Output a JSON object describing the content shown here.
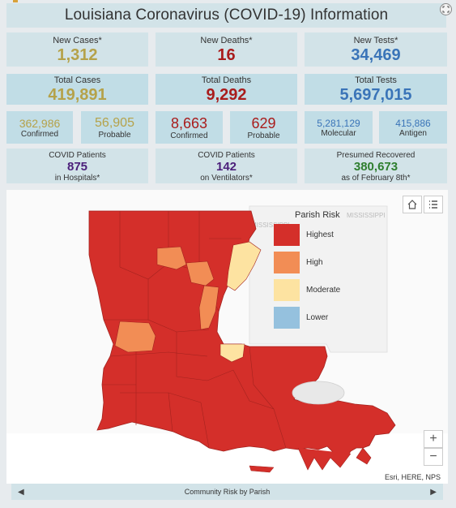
{
  "header": {
    "title": "Louisiana Coronavirus (COVID-19) Information"
  },
  "row1": [
    {
      "label": "New Cases*",
      "value": "1,312",
      "color": "#b5a24a"
    },
    {
      "label": "New Deaths*",
      "value": "16",
      "color": "#a91c1c"
    },
    {
      "label": "New Tests*",
      "value": "34,469",
      "color": "#3a74b8"
    }
  ],
  "row2": [
    {
      "label": "Total Cases",
      "value": "419,891",
      "color": "#b5a24a"
    },
    {
      "label": "Total Deaths",
      "value": "9,292",
      "color": "#a91c1c"
    },
    {
      "label": "Total Tests",
      "value": "5,697,015",
      "color": "#3a74b8"
    }
  ],
  "row3": {
    "confirmed_cases": {
      "value": "362,986",
      "label": "Confirmed"
    },
    "probable_cases": {
      "value": "56,905",
      "label": "Probable"
    },
    "confirmed_deaths": {
      "value": "8,663",
      "label": "Confirmed"
    },
    "probable_deaths": {
      "value": "629",
      "label": "Probable"
    },
    "molecular_tests": {
      "value": "5,281,129",
      "label": "Molecular"
    },
    "antigen_tests": {
      "value": "415,886",
      "label": "Antigen"
    }
  },
  "row4": [
    {
      "label": "COVID Patients",
      "value": "875",
      "sub": "in Hospitals*",
      "color": "#4b1f7a"
    },
    {
      "label": "COVID Patients",
      "value": "142",
      "sub": "on Ventilators*",
      "color": "#4b1f7a"
    },
    {
      "label": "Presumed Recovered",
      "value": "380,673",
      "sub": "as of February 8th*",
      "color": "#2e7e2e"
    }
  ],
  "map": {
    "legend_title": "Parish Risk",
    "legend": [
      {
        "label": "Highest",
        "color": "#d42f2a"
      },
      {
        "label": "High",
        "color": "#f28d55"
      },
      {
        "label": "Moderate",
        "color": "#fde3a1"
      },
      {
        "label": "Lower",
        "color": "#95c1de"
      }
    ],
    "state_label": "MISSISSIPPI",
    "attribution": "Esri, HERE, NPS",
    "zoom_in": "+",
    "zoom_out": "−"
  },
  "footer": {
    "text": "Community Risk by Parish",
    "prev": "◀",
    "next": "▶"
  }
}
